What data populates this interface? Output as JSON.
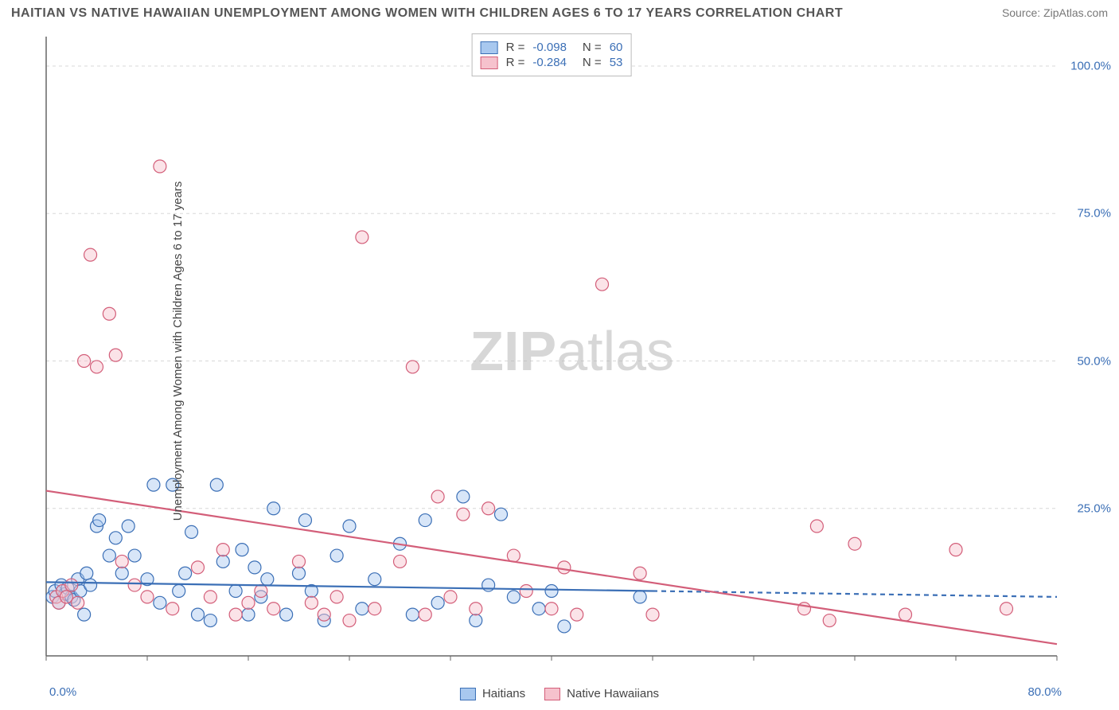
{
  "header": {
    "title": "HAITIAN VS NATIVE HAWAIIAN UNEMPLOYMENT AMONG WOMEN WITH CHILDREN AGES 6 TO 17 YEARS CORRELATION CHART",
    "source_label": "Source:",
    "source_value": "ZipAtlas.com"
  },
  "chart": {
    "type": "scatter",
    "ylabel": "Unemployment Among Women with Children Ages 6 to 17 years",
    "xlim": [
      0,
      80
    ],
    "ylim": [
      0,
      105
    ],
    "x_tick_labels": {
      "left": "0.0%",
      "right": "80.0%"
    },
    "y_ticks": [
      {
        "v": 25,
        "label": "25.0%"
      },
      {
        "v": 50,
        "label": "50.0%"
      },
      {
        "v": 75,
        "label": "75.0%"
      },
      {
        "v": 100,
        "label": "100.0%"
      }
    ],
    "x_minor_step": 8,
    "grid_color": "#d8d8d8",
    "axis_color": "#666666",
    "background_color": "#ffffff",
    "marker_radius": 8,
    "marker_opacity": 0.45,
    "line_width": 2.2,
    "watermark": {
      "text_bold": "ZIP",
      "text_light": "atlas",
      "color": "#bdbdbd",
      "opacity": 0.6
    },
    "series": [
      {
        "name": "Haitians",
        "color_fill": "#a8c8ef",
        "color_stroke": "#3b6fb6",
        "R": "-0.098",
        "N": "60",
        "trend": {
          "y_at_x0": 12.5,
          "y_at_x80": 10.0,
          "solid_until_x": 48
        },
        "points": [
          [
            0.5,
            10
          ],
          [
            0.7,
            11
          ],
          [
            1,
            9
          ],
          [
            1.2,
            12
          ],
          [
            1.5,
            10.5
          ],
          [
            1.7,
            11.5
          ],
          [
            2,
            10
          ],
          [
            2.2,
            9.5
          ],
          [
            2.5,
            13
          ],
          [
            2.7,
            11
          ],
          [
            3,
            7
          ],
          [
            3.2,
            14
          ],
          [
            3.5,
            12
          ],
          [
            4,
            22
          ],
          [
            4.2,
            23
          ],
          [
            5,
            17
          ],
          [
            5.5,
            20
          ],
          [
            6,
            14
          ],
          [
            6.5,
            22
          ],
          [
            7,
            17
          ],
          [
            8,
            13
          ],
          [
            8.5,
            29
          ],
          [
            9,
            9
          ],
          [
            10,
            29
          ],
          [
            10.5,
            11
          ],
          [
            11,
            14
          ],
          [
            11.5,
            21
          ],
          [
            12,
            7
          ],
          [
            13,
            6
          ],
          [
            13.5,
            29
          ],
          [
            14,
            16
          ],
          [
            15,
            11
          ],
          [
            15.5,
            18
          ],
          [
            16,
            7
          ],
          [
            16.5,
            15
          ],
          [
            17,
            10
          ],
          [
            17.5,
            13
          ],
          [
            18,
            25
          ],
          [
            19,
            7
          ],
          [
            20,
            14
          ],
          [
            20.5,
            23
          ],
          [
            21,
            11
          ],
          [
            22,
            6
          ],
          [
            23,
            17
          ],
          [
            24,
            22
          ],
          [
            25,
            8
          ],
          [
            26,
            13
          ],
          [
            28,
            19
          ],
          [
            29,
            7
          ],
          [
            30,
            23
          ],
          [
            31,
            9
          ],
          [
            33,
            27
          ],
          [
            34,
            6
          ],
          [
            35,
            12
          ],
          [
            36,
            24
          ],
          [
            37,
            10
          ],
          [
            39,
            8
          ],
          [
            40,
            11
          ],
          [
            41,
            5
          ],
          [
            47,
            10
          ]
        ]
      },
      {
        "name": "Native Hawaiians",
        "color_fill": "#f6c2cd",
        "color_stroke": "#d35e79",
        "R": "-0.284",
        "N": "53",
        "trend": {
          "y_at_x0": 28,
          "y_at_x80": 2,
          "solid_until_x": 80
        },
        "points": [
          [
            0.8,
            10
          ],
          [
            1,
            9
          ],
          [
            1.3,
            11
          ],
          [
            1.6,
            10
          ],
          [
            2,
            12
          ],
          [
            2.5,
            9
          ],
          [
            3,
            50
          ],
          [
            3.5,
            68
          ],
          [
            4,
            49
          ],
          [
            5,
            58
          ],
          [
            5.5,
            51
          ],
          [
            6,
            16
          ],
          [
            7,
            12
          ],
          [
            8,
            10
          ],
          [
            9,
            83
          ],
          [
            10,
            8
          ],
          [
            12,
            15
          ],
          [
            13,
            10
          ],
          [
            14,
            18
          ],
          [
            15,
            7
          ],
          [
            16,
            9
          ],
          [
            17,
            11
          ],
          [
            18,
            8
          ],
          [
            20,
            16
          ],
          [
            21,
            9
          ],
          [
            22,
            7
          ],
          [
            23,
            10
          ],
          [
            24,
            6
          ],
          [
            25,
            71
          ],
          [
            26,
            8
          ],
          [
            28,
            16
          ],
          [
            29,
            49
          ],
          [
            30,
            7
          ],
          [
            31,
            27
          ],
          [
            32,
            10
          ],
          [
            33,
            24
          ],
          [
            34,
            8
          ],
          [
            35,
            25
          ],
          [
            37,
            17
          ],
          [
            38,
            11
          ],
          [
            40,
            8
          ],
          [
            41,
            15
          ],
          [
            42,
            7
          ],
          [
            44,
            63
          ],
          [
            47,
            14
          ],
          [
            48,
            7
          ],
          [
            60,
            8
          ],
          [
            61,
            22
          ],
          [
            62,
            6
          ],
          [
            64,
            19
          ],
          [
            68,
            7
          ],
          [
            72,
            18
          ],
          [
            76,
            8
          ]
        ]
      }
    ],
    "legend_bottom": [
      {
        "label": "Haitians",
        "fill": "#a8c8ef",
        "stroke": "#3b6fb6"
      },
      {
        "label": "Native Hawaiians",
        "fill": "#f6c2cd",
        "stroke": "#d35e79"
      }
    ]
  }
}
